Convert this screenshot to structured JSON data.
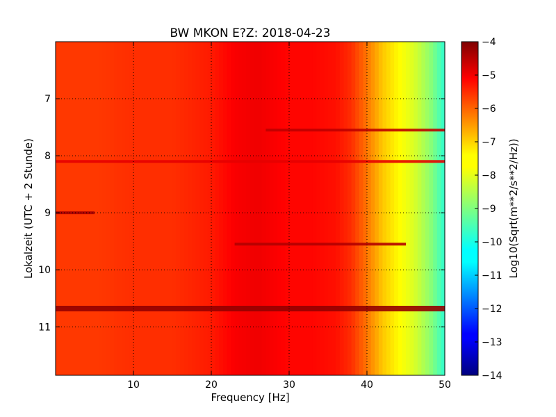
{
  "chart_data": {
    "type": "heatmap",
    "title": "BW MKON E?Z: 2018-04-23",
    "xlabel": "Frequency [Hz]",
    "ylabel": "Lokalzeit (UTC + 2 Stunde)",
    "colorbar_label": "Log10(Sqrt(m**2/s**2/Hz))",
    "colormap": "jet",
    "xlim": [
      0,
      50
    ],
    "ylim": [
      11.85,
      6.0
    ],
    "y_inverted": true,
    "clim": [
      -14,
      -4
    ],
    "x_ticks": [
      10,
      20,
      30,
      40,
      50
    ],
    "x_tick_labels": [
      "10",
      "20",
      "30",
      "40",
      "50"
    ],
    "y_ticks": [
      7,
      8,
      9,
      10,
      11
    ],
    "y_tick_labels": [
      "7",
      "8",
      "9",
      "10",
      "11"
    ],
    "colorbar_ticks": [
      -4,
      -5,
      -6,
      -7,
      -8,
      -9,
      -10,
      -11,
      -12,
      -13,
      -14
    ],
    "colorbar_tick_labels": [
      "−4",
      "−5",
      "−6",
      "−7",
      "−8",
      "−9",
      "−10",
      "−11",
      "−12",
      "−13",
      "−14"
    ],
    "grid": "dotted",
    "frequency_profile": {
      "freq": [
        0,
        5,
        10,
        15,
        20,
        23,
        26,
        28,
        30,
        33,
        36,
        38,
        40,
        42,
        44,
        46,
        48,
        50
      ],
      "value": [
        -5.8,
        -5.8,
        -5.7,
        -5.7,
        -5.5,
        -5.2,
        -5.1,
        -5.2,
        -5.3,
        -5.3,
        -5.4,
        -5.7,
        -6.4,
        -7.2,
        -7.7,
        -8.1,
        -8.8,
        -9.8
      ]
    },
    "bands": [
      {
        "time": 7.55,
        "f_start": 27,
        "f_end": 50,
        "value": -4.6
      },
      {
        "time": 8.1,
        "f_start": 0,
        "f_end": 50,
        "value": -5.0
      },
      {
        "time": 9.0,
        "f_start": 0,
        "f_end": 5,
        "value": -4.4
      },
      {
        "time": 9.55,
        "f_start": 23,
        "f_end": 45,
        "value": -4.5
      },
      {
        "time": 10.68,
        "f_start": 0,
        "f_end": 50,
        "value": -4.2
      }
    ]
  }
}
